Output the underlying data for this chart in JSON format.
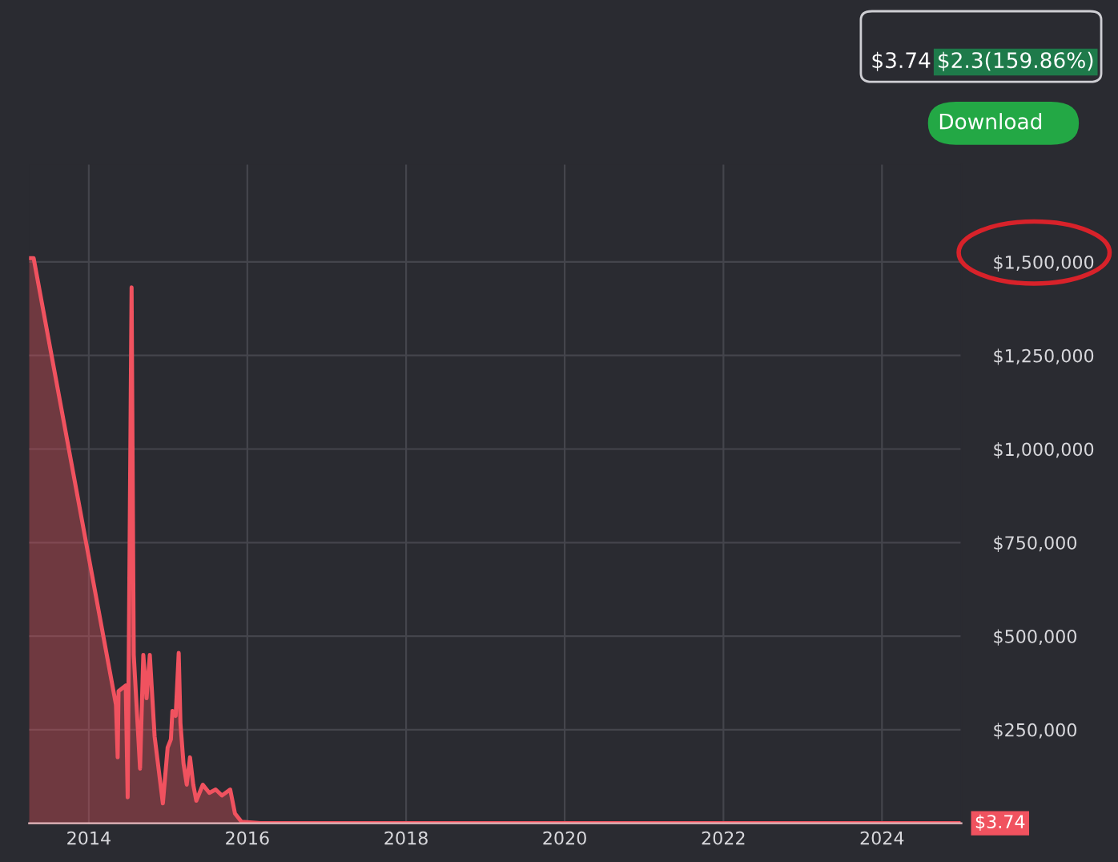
{
  "chart_data": {
    "type": "area",
    "x": [
      "2013-04-01",
      "2013-04-22",
      "2014-05-06",
      "2014-05-14",
      "2014-05-18",
      "2014-06-20",
      "2014-06-29",
      "2014-07-17",
      "2014-07-27",
      "2014-08-25",
      "2014-09-09",
      "2014-09-24",
      "2014-10-09",
      "2014-10-31",
      "2014-12-08",
      "2014-12-30",
      "2015-01-14",
      "2015-01-21",
      "2015-02-05",
      "2015-02-19",
      "2015-02-27",
      "2015-03-13",
      "2015-03-28",
      "2015-04-12",
      "2015-04-27",
      "2015-05-11",
      "2015-06-10",
      "2015-07-10",
      "2015-08-08",
      "2015-09-06",
      "2015-10-14",
      "2015-11-05",
      "2015-12-05",
      "2016-03-01",
      "2018-01-01",
      "2020-01-01",
      "2022-01-01",
      "2024-12-31"
    ],
    "series": [
      {
        "color": "#f0525f",
        "values": [
          1510000,
          1510000,
          317000,
          176000,
          353000,
          368000,
          69000,
          1432000,
          450000,
          146000,
          450000,
          334000,
          450000,
          232000,
          53000,
          202000,
          224000,
          300000,
          287000,
          455000,
          267000,
          160000,
          103000,
          176000,
          103000,
          60000,
          103000,
          81000,
          90000,
          74000,
          90000,
          26000,
          4000,
          0,
          0,
          0,
          0,
          3.74
        ]
      }
    ],
    "xlim": [
      "2013-04-01",
      "2025-01-01"
    ],
    "xticks": [
      "2014",
      "2016",
      "2018",
      "2020",
      "2022",
      "2024"
    ],
    "ylim": [
      0,
      1760000
    ],
    "yticks": [
      {
        "value": 250000,
        "label": "$250,000"
      },
      {
        "value": 500000,
        "label": "$500,000"
      },
      {
        "value": 750000,
        "label": "$750,000"
      },
      {
        "value": 1000000,
        "label": "$1,000,000"
      },
      {
        "value": 1250000,
        "label": "$1,250,000"
      },
      {
        "value": 1500000,
        "label": "$1,500,000"
      }
    ],
    "grid": true,
    "legend": false,
    "annotations": [
      "$3.74",
      "$2.3(159.86%)",
      "Download",
      {
        "text": "$3.74",
        "x": "2024-12-31",
        "y": 3.74
      }
    ]
  }
}
